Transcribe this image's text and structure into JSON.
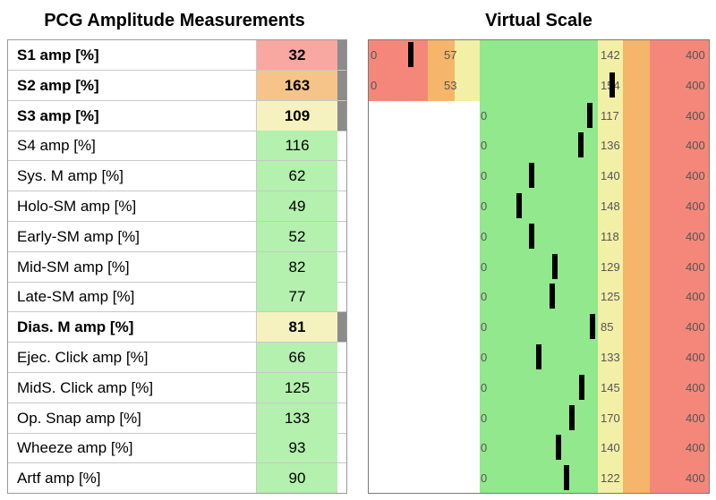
{
  "left_title": "PCG Amplitude Measurements",
  "right_title": "Virtual Scale",
  "colors": {
    "red": "#f5877a",
    "orange": "#f5b56a",
    "yellow": "#f2f0a6",
    "green": "#92e88c",
    "value_red": "#f8a8a0",
    "value_orange": "#f6c488",
    "value_yellow": "#f5f2bf",
    "value_green": "#b4f0ae",
    "flag": "#8c8c8c",
    "marker": "#000000"
  },
  "chart_data": {
    "type": "table",
    "scale_max": 400,
    "rows": [
      {
        "label": "S1 amp [%]",
        "value": 32,
        "status": "red",
        "flagged": true,
        "bold": true,
        "low_red": 0,
        "low_orange": 45,
        "low_yellow": 57,
        "high_yellow": 142,
        "high_orange": 160,
        "max": 400
      },
      {
        "label": "S2 amp [%]",
        "value": 163,
        "status": "orange",
        "flagged": true,
        "bold": true,
        "low_red": 0,
        "low_orange": 43,
        "low_yellow": 53,
        "high_yellow": 154,
        "high_orange": 170,
        "max": 400
      },
      {
        "label": "S3 amp [%]",
        "value": 109,
        "status": "yellow",
        "flagged": true,
        "bold": true,
        "low_red": null,
        "low_orange": null,
        "low_yellow": 0,
        "high_yellow": 117,
        "high_orange": 140,
        "max": 400
      },
      {
        "label": "S4 amp [%]",
        "value": 116,
        "status": "green",
        "flagged": false,
        "bold": false,
        "low_red": null,
        "low_orange": null,
        "low_yellow": 0,
        "high_yellow": 136,
        "high_orange": 160,
        "max": 400
      },
      {
        "label": "Sys. M amp [%]",
        "value": 62,
        "status": "green",
        "flagged": false,
        "bold": false,
        "low_red": null,
        "low_orange": null,
        "low_yellow": 0,
        "high_yellow": 140,
        "high_orange": 160,
        "max": 400
      },
      {
        "label": "Holo-SM amp [%]",
        "value": 49,
        "status": "green",
        "flagged": false,
        "bold": false,
        "low_red": null,
        "low_orange": null,
        "low_yellow": 0,
        "high_yellow": 148,
        "high_orange": 170,
        "max": 400
      },
      {
        "label": "Early-SM amp [%]",
        "value": 52,
        "status": "green",
        "flagged": false,
        "bold": false,
        "low_red": null,
        "low_orange": null,
        "low_yellow": 0,
        "high_yellow": 118,
        "high_orange": 140,
        "max": 400
      },
      {
        "label": "Mid-SM amp [%]",
        "value": 82,
        "status": "green",
        "flagged": false,
        "bold": false,
        "low_red": null,
        "low_orange": null,
        "low_yellow": 0,
        "high_yellow": 129,
        "high_orange": 150,
        "max": 400
      },
      {
        "label": "Late-SM amp [%]",
        "value": 77,
        "status": "green",
        "flagged": false,
        "bold": false,
        "low_red": null,
        "low_orange": null,
        "low_yellow": 0,
        "high_yellow": 125,
        "high_orange": 145,
        "max": 400
      },
      {
        "label": "Dias. M amp [%]",
        "value": 81,
        "status": "yellow",
        "flagged": true,
        "bold": true,
        "low_red": null,
        "low_orange": null,
        "low_yellow": 0,
        "high_yellow": 85,
        "high_orange": 110,
        "max": 400
      },
      {
        "label": "Ejec. Click amp [%]",
        "value": 66,
        "status": "green",
        "flagged": false,
        "bold": false,
        "low_red": null,
        "low_orange": null,
        "low_yellow": 0,
        "high_yellow": 133,
        "high_orange": 155,
        "max": 400
      },
      {
        "label": "MidS. Click amp [%]",
        "value": 125,
        "status": "green",
        "flagged": false,
        "bold": false,
        "low_red": null,
        "low_orange": null,
        "low_yellow": 0,
        "high_yellow": 145,
        "high_orange": 170,
        "max": 400
      },
      {
        "label": "Op. Snap amp [%]",
        "value": 133,
        "status": "green",
        "flagged": false,
        "bold": false,
        "low_red": null,
        "low_orange": null,
        "low_yellow": 0,
        "high_yellow": 170,
        "high_orange": 195,
        "max": 400
      },
      {
        "label": "Wheeze amp [%]",
        "value": 93,
        "status": "green",
        "flagged": false,
        "bold": false,
        "low_red": null,
        "low_orange": null,
        "low_yellow": 0,
        "high_yellow": 140,
        "high_orange": 160,
        "max": 400
      },
      {
        "label": "Artf amp [%]",
        "value": 90,
        "status": "green",
        "flagged": false,
        "bold": false,
        "low_red": null,
        "low_orange": null,
        "low_yellow": 0,
        "high_yellow": 122,
        "high_orange": 145,
        "max": 400
      }
    ]
  }
}
